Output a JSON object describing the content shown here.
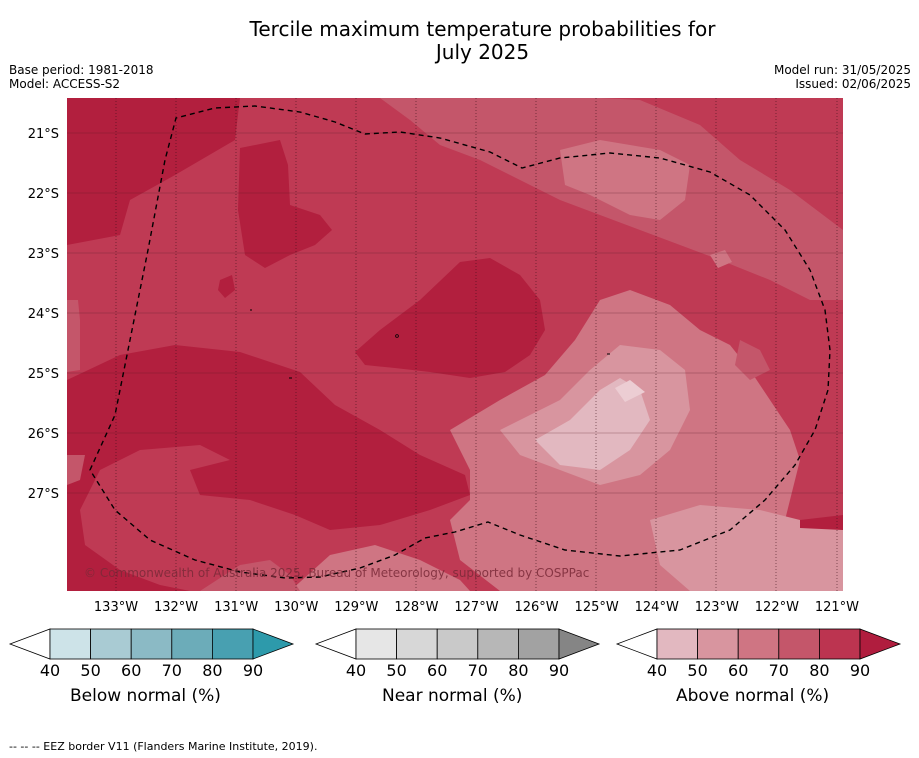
{
  "title_line1": "Tercile maximum temperature probabilities for",
  "title_line2": "July 2025",
  "base_period": "Base period: 1981-2018",
  "model": "Model: ACCESS-S2",
  "model_run": "Model run: 31/05/2025",
  "issued": "Issued: 02/06/2025",
  "copyright": "© Commonwealth of Australia 2025, Bureau of Meteorology, supported by COSPPac",
  "lat_labels": [
    "21°S",
    "22°S",
    "23°S",
    "24°S",
    "25°S",
    "26°S",
    "27°S"
  ],
  "lon_labels": [
    "133°W",
    "132°W",
    "131°W",
    "130°W",
    "129°W",
    "128°W",
    "127°W",
    "126°W",
    "125°W",
    "124°W",
    "123°W",
    "122°W",
    "121°W"
  ],
  "legends": [
    {
      "label": "Below normal (%)",
      "ticks": [
        "40",
        "50",
        "60",
        "70",
        "80",
        "90"
      ],
      "colors": [
        "#ffffff",
        "#cde3e8",
        "#a9cbd3",
        "#8bbac5",
        "#6cacb9",
        "#48a0b1",
        "#2d9aab"
      ]
    },
    {
      "label": "Near normal (%)",
      "ticks": [
        "40",
        "50",
        "60",
        "70",
        "80",
        "90"
      ],
      "colors": [
        "#ffffff",
        "#e6e6e6",
        "#d7d7d7",
        "#c9c9c9",
        "#b7b7b7",
        "#a2a2a2",
        "#858585"
      ]
    },
    {
      "label": "Above normal (%)",
      "ticks": [
        "40",
        "50",
        "60",
        "70",
        "80",
        "90"
      ],
      "colors": [
        "#ffffff",
        "#e2b8c0",
        "#d8959f",
        "#cf7583",
        "#c4566a",
        "#bc3450",
        "#b01d3e"
      ]
    }
  ],
  "footnote": "-- -- -- EEZ border V11 (Flanders Marine Institute, 2019)."
}
